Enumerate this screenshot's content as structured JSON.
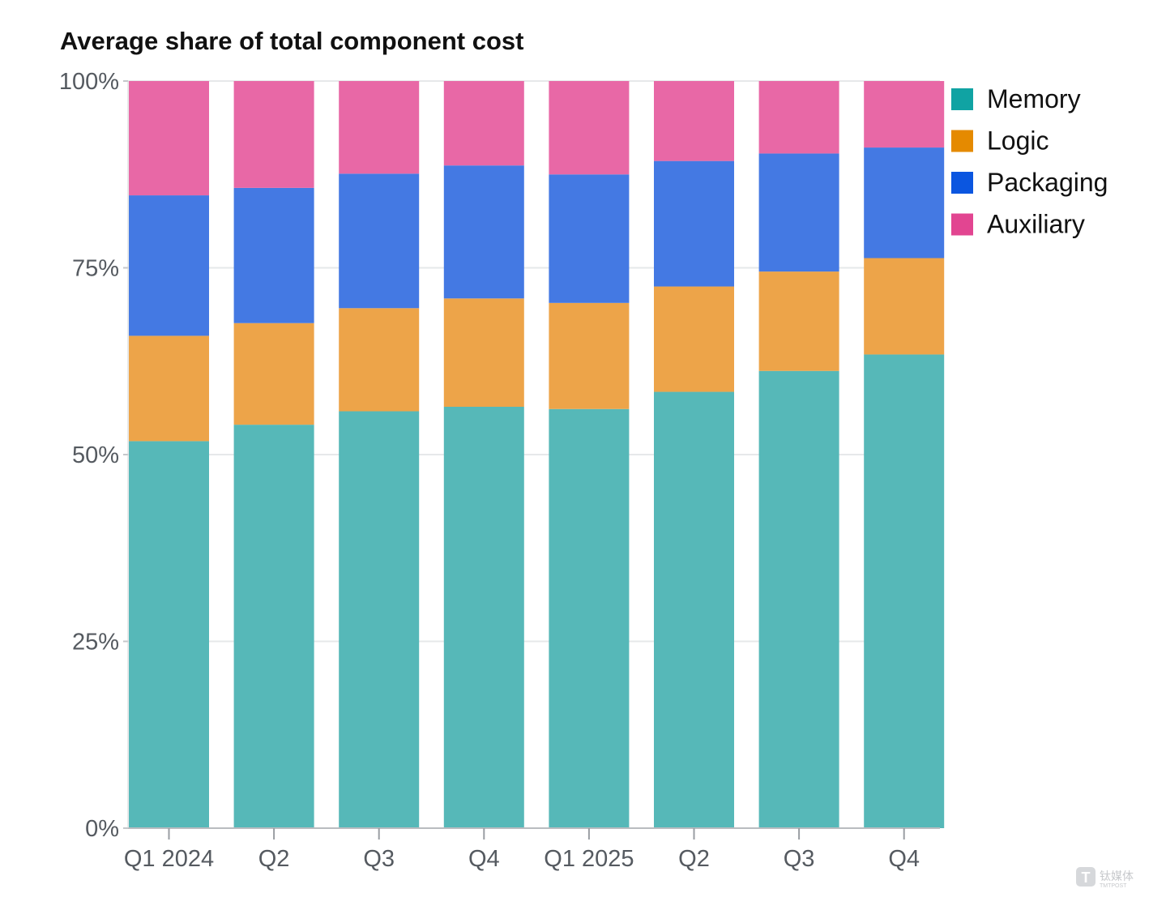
{
  "chart_data": {
    "type": "bar",
    "stacked": true,
    "title": "Average share of total component cost",
    "xlabel": "",
    "ylabel": "",
    "categories": [
      "Q1 2024",
      "Q2",
      "Q3",
      "Q4",
      "Q1 2025",
      "Q2",
      "Q3",
      "Q4"
    ],
    "ylim": [
      0,
      100
    ],
    "yticks": [
      "0%",
      "25%",
      "50%",
      "75%",
      "100%"
    ],
    "ytick_values": [
      0,
      25,
      50,
      75,
      100
    ],
    "grid": "horizontal",
    "legend_position": "top-right",
    "series": [
      {
        "name": "Memory",
        "color": "#56b8b8",
        "legend_color": "#10a3a3",
        "values": [
          51.8,
          54.0,
          55.8,
          56.4,
          56.1,
          58.4,
          61.2,
          63.4
        ]
      },
      {
        "name": "Logic",
        "color": "#eda449",
        "legend_color": "#e58a00",
        "values": [
          14.1,
          13.6,
          13.8,
          14.5,
          14.2,
          14.1,
          13.3,
          12.9
        ]
      },
      {
        "name": "Packaging",
        "color": "#4479e3",
        "legend_color": "#0b56e0",
        "values": [
          18.8,
          18.1,
          18.0,
          17.8,
          17.2,
          16.8,
          15.8,
          14.8
        ]
      },
      {
        "name": "Auxiliary",
        "color": "#e868a6",
        "legend_color": "#e24591",
        "values": [
          15.3,
          14.3,
          12.4,
          11.3,
          12.5,
          10.7,
          9.7,
          8.9
        ]
      }
    ]
  },
  "watermark": {
    "logo_letter": "T",
    "text_cn": "钛媒体",
    "text_en": "TMTPOST"
  }
}
